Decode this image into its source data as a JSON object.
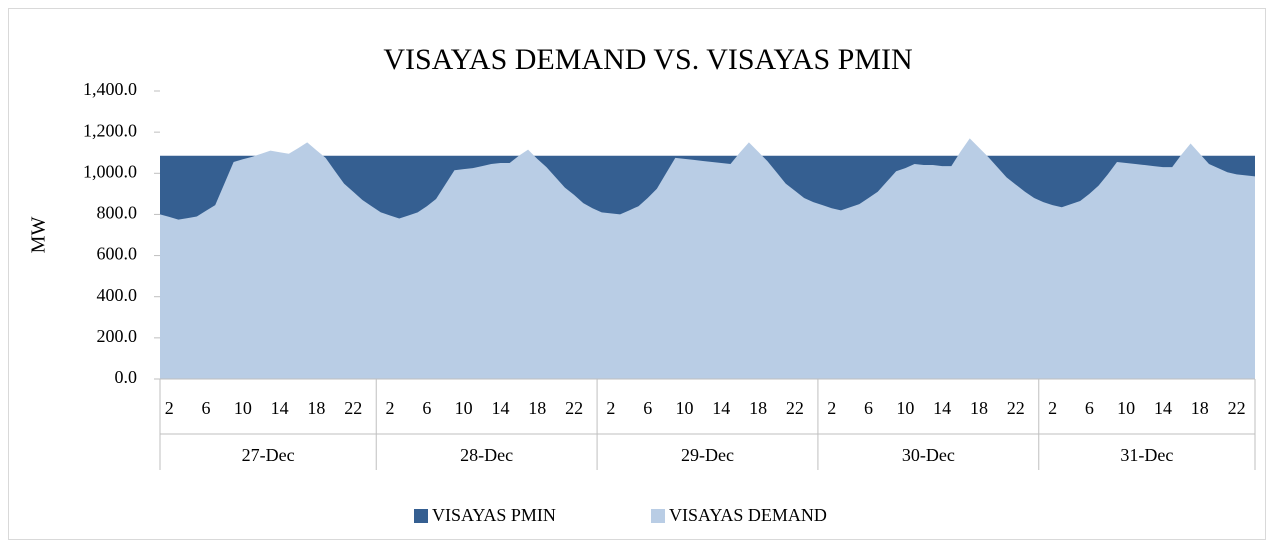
{
  "chart_data": {
    "type": "area",
    "title": "VISAYAS DEMAND VS. VISAYAS PMIN",
    "y_label": "MW",
    "categories": [
      null,
      "2",
      null,
      null,
      null,
      "6",
      null,
      null,
      null,
      "10",
      null,
      null,
      null,
      "14",
      null,
      null,
      null,
      "18",
      null,
      null,
      null,
      "22",
      null,
      null,
      null,
      "2",
      null,
      null,
      null,
      "6",
      null,
      null,
      null,
      "10",
      null,
      null,
      null,
      "14",
      null,
      null,
      null,
      "18",
      null,
      null,
      null,
      "22",
      null,
      null,
      null,
      "2",
      null,
      null,
      null,
      "6",
      null,
      null,
      null,
      "10",
      null,
      null,
      null,
      "14",
      null,
      null,
      null,
      "18",
      null,
      null,
      null,
      "22",
      null,
      null,
      null,
      "2",
      null,
      null,
      null,
      "6",
      null,
      null,
      null,
      "10",
      null,
      null,
      null,
      "14",
      null,
      null,
      null,
      "18",
      null,
      null,
      null,
      "22",
      null,
      null,
      null,
      "2",
      null,
      null,
      null,
      "6",
      null,
      null,
      null,
      "10",
      null,
      null,
      null,
      "14",
      null,
      null,
      null,
      "18",
      null,
      null,
      null,
      "22",
      null,
      null
    ],
    "groups": [
      "27-Dec",
      "28-Dec",
      "29-Dec",
      "30-Dec",
      "31-Dec"
    ],
    "series": [
      {
        "name": "VISAYAS PMIN",
        "color": "#355f91",
        "values": [
          1085,
          1085,
          1085,
          1085,
          1085,
          1085,
          1085,
          1085,
          1085,
          1085,
          1085,
          1085,
          1085,
          1085,
          1085,
          1085,
          1085,
          1085,
          1085,
          1085,
          1085,
          1085,
          1085,
          1085,
          1085,
          1085,
          1085,
          1085,
          1085,
          1085,
          1085,
          1085,
          1085,
          1085,
          1085,
          1085,
          1085,
          1085,
          1085,
          1085,
          1085,
          1085,
          1085,
          1085,
          1085,
          1085,
          1085,
          1085,
          1085,
          1085,
          1085,
          1085,
          1085,
          1085,
          1085,
          1085,
          1085,
          1085,
          1085,
          1085,
          1085,
          1085,
          1085,
          1085,
          1085,
          1085,
          1085,
          1085,
          1085,
          1085,
          1085,
          1085,
          1085,
          1085,
          1085,
          1085,
          1085,
          1085,
          1085,
          1085,
          1085,
          1085,
          1085,
          1085,
          1085,
          1085,
          1085,
          1085,
          1085,
          1085,
          1085,
          1085,
          1085,
          1085,
          1085,
          1085,
          1085,
          1085,
          1085,
          1085,
          1085,
          1085,
          1085,
          1085,
          1085,
          1085,
          1085,
          1085,
          1085,
          1085,
          1085,
          1085,
          1085,
          1085,
          1085,
          1085,
          1085,
          1085,
          1085,
          1085
        ]
      },
      {
        "name": "VISAYAS DEMAND",
        "color": "#b9cde5",
        "values": [
          800,
          788,
          775,
          782,
          790,
          818,
          845,
          950,
          1055,
          1068,
          1080,
          1095,
          1110,
          1102,
          1095,
          1122,
          1150,
          1112,
          1075,
          1012,
          950,
          910,
          870,
          840,
          810,
          795,
          780,
          795,
          810,
          840,
          875,
          945,
          1015,
          1020,
          1025,
          1035,
          1045,
          1050,
          1050,
          1085,
          1115,
          1070,
          1030,
          980,
          930,
          895,
          855,
          830,
          810,
          805,
          800,
          820,
          840,
          880,
          925,
          1000,
          1075,
          1070,
          1065,
          1060,
          1055,
          1050,
          1045,
          1100,
          1150,
          1105,
          1060,
          1005,
          950,
          915,
          880,
          860,
          845,
          830,
          820,
          835,
          850,
          880,
          910,
          960,
          1010,
          1025,
          1045,
          1040,
          1040,
          1035,
          1035,
          1105,
          1170,
          1125,
          1080,
          1030,
          980,
          945,
          910,
          880,
          860,
          845,
          835,
          850,
          865,
          900,
          940,
          995,
          1055,
          1050,
          1045,
          1040,
          1035,
          1030,
          1030,
          1090,
          1145,
          1095,
          1045,
          1025,
          1005,
          995,
          990,
          985
        ]
      }
    ],
    "ylim": [
      0,
      1400
    ],
    "yticks": [
      {
        "value": 0,
        "label": "0.0"
      },
      {
        "value": 200,
        "label": "200.0"
      },
      {
        "value": 400,
        "label": "400.0"
      },
      {
        "value": 600,
        "label": "600.0"
      },
      {
        "value": 800,
        "label": "800.0"
      },
      {
        "value": 1000,
        "label": "1,000.0"
      },
      {
        "value": 1200,
        "label": "1,200.0"
      },
      {
        "value": 1400,
        "label": "1,400.0"
      }
    ],
    "legend": "bottom"
  }
}
